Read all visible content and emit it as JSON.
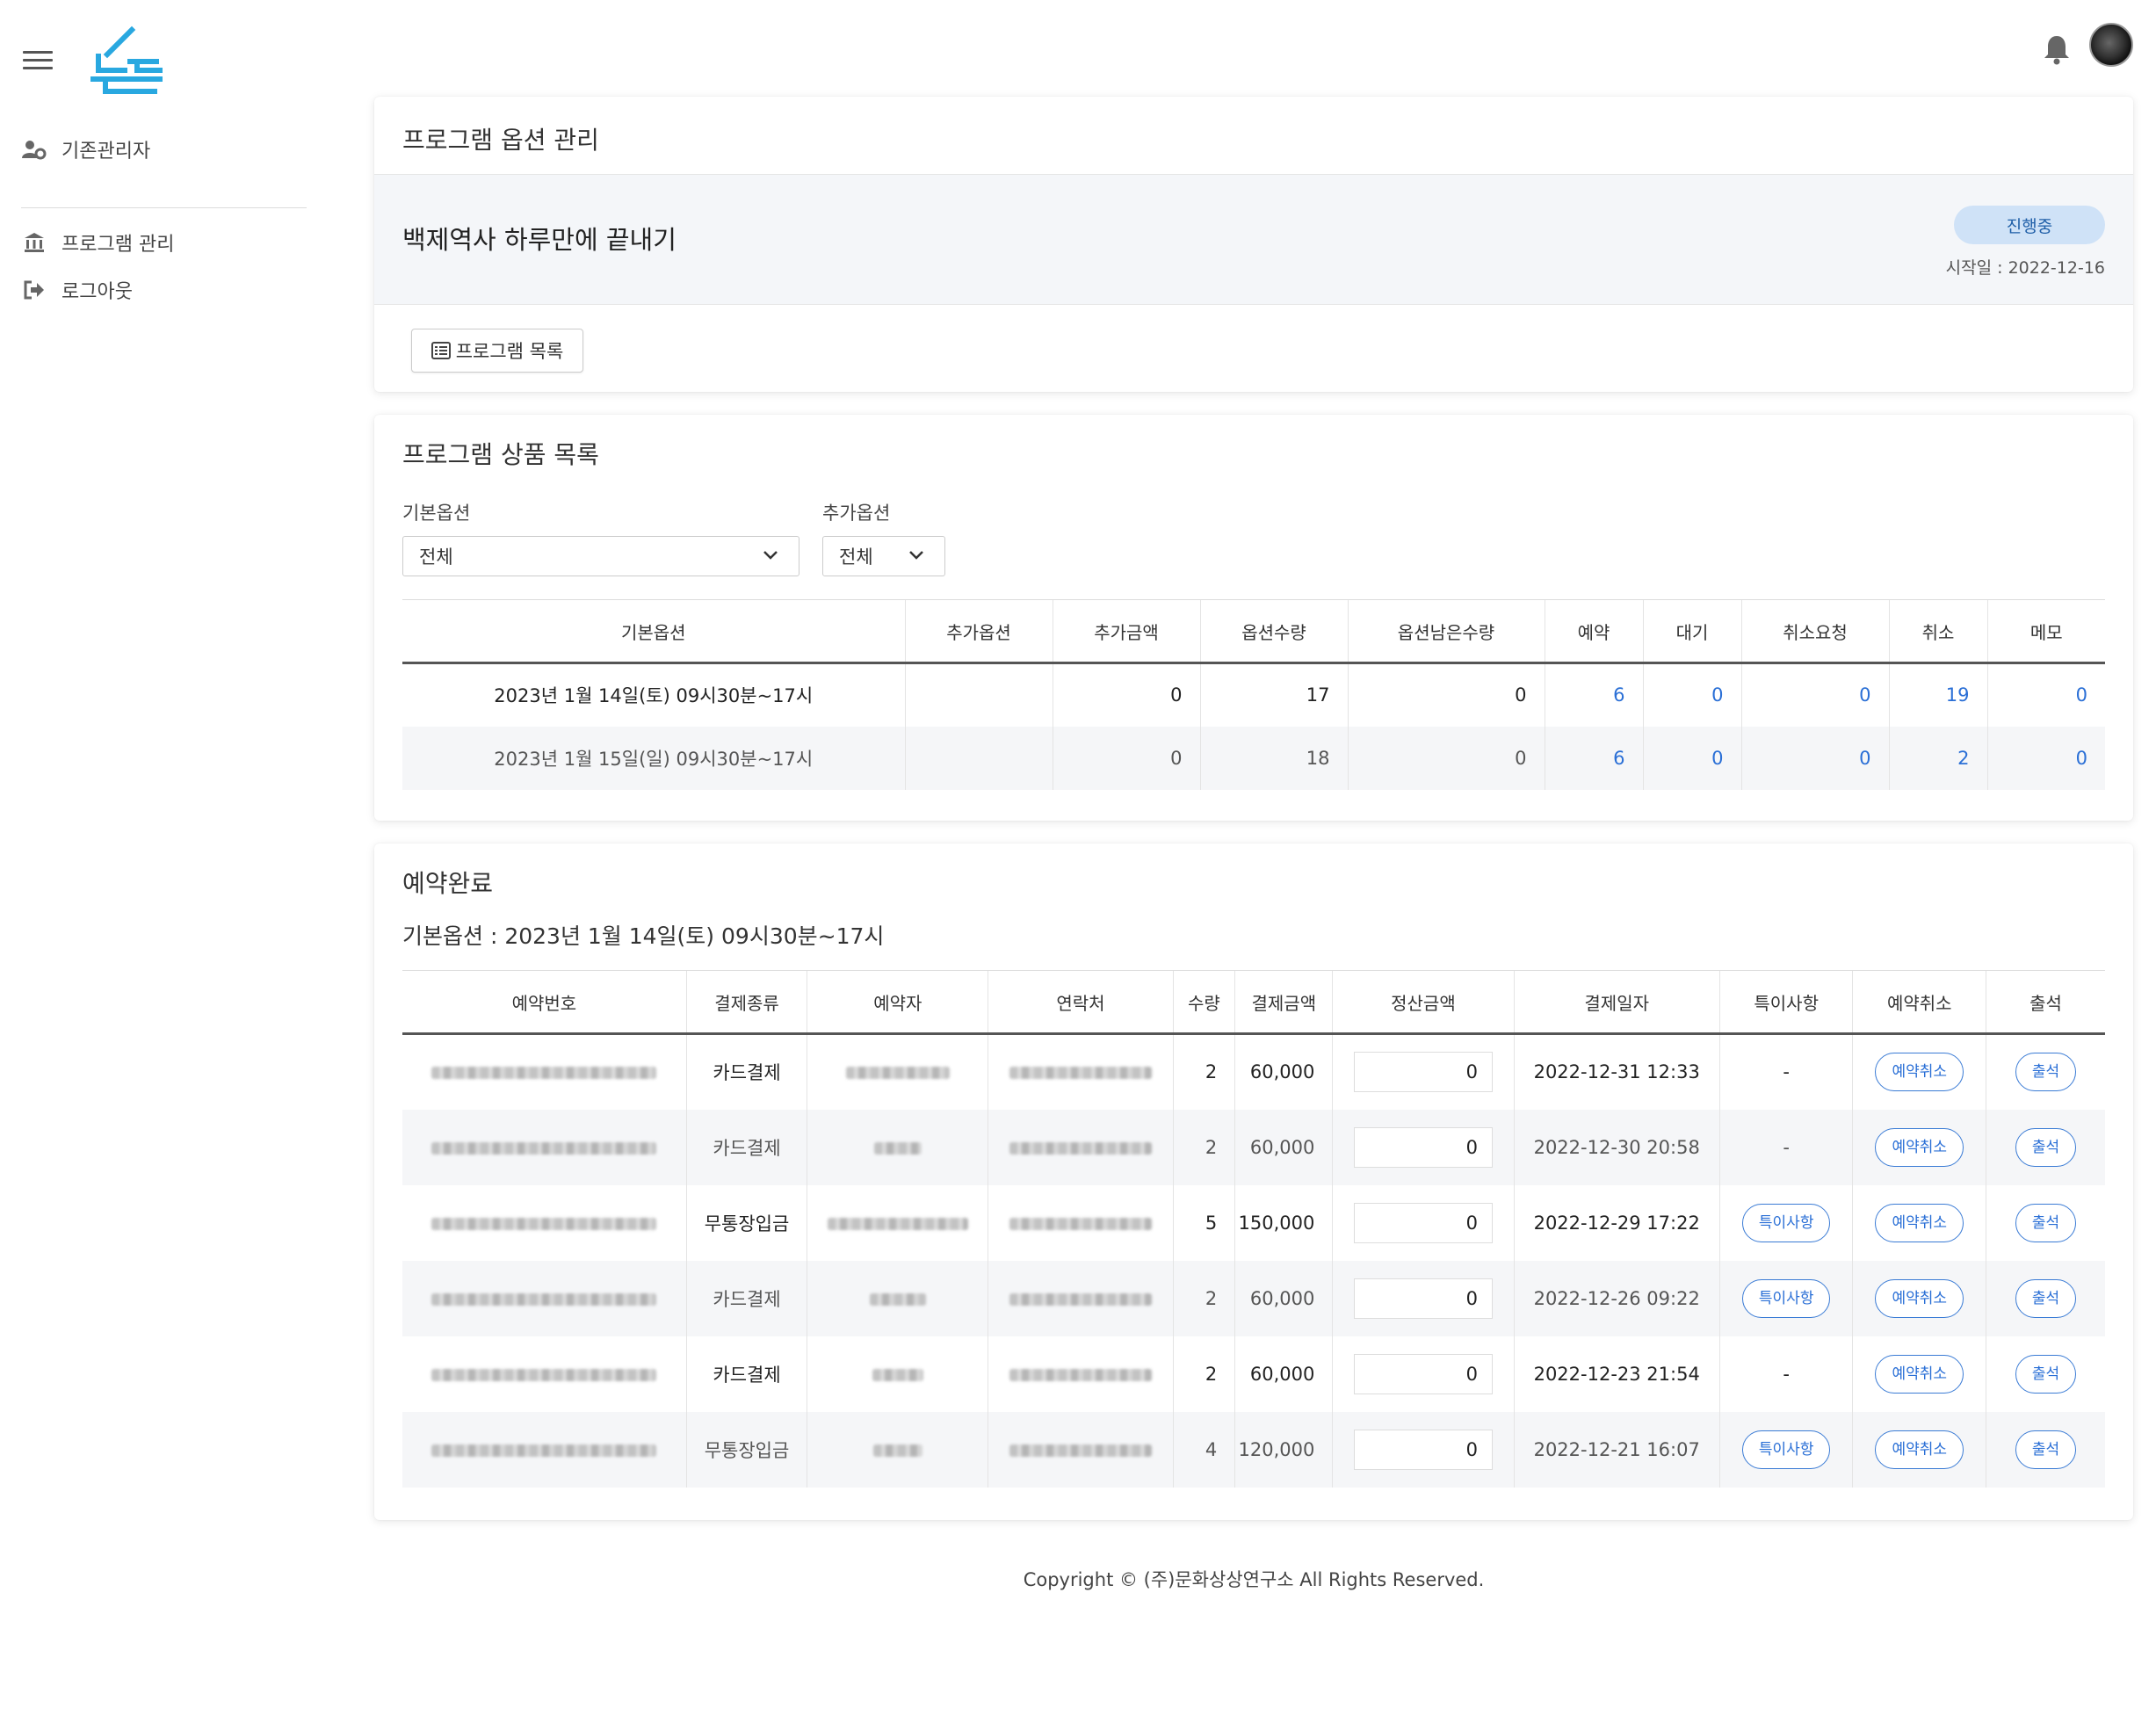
{
  "sidebar": {
    "items": [
      {
        "label": "기존관리자",
        "icon": "user-gear-icon"
      },
      {
        "label": "프로그램 관리",
        "icon": "bank-icon"
      },
      {
        "label": "로그아웃",
        "icon": "logout-icon"
      }
    ]
  },
  "header": {
    "logo_icon": "nolto-logo",
    "notification_icon": "bell-icon",
    "avatar_icon": "avatar"
  },
  "option_mgmt": {
    "title": "프로그램 옵션 관리",
    "program_name": "백제역사 하루만에 끝내기",
    "status": "진행중",
    "start_date": "시작일 : 2022-12-16",
    "list_button": "프로그램 목록"
  },
  "products": {
    "title": "프로그램 상품 목록",
    "basic_option_label": "기본옵션",
    "basic_option_value": "전체",
    "extra_option_label": "추가옵션",
    "extra_option_value": "전체",
    "columns": [
      "기본옵션",
      "추가옵션",
      "추가금액",
      "옵션수량",
      "옵션남은수량",
      "예약",
      "대기",
      "취소요청",
      "취소",
      "메모"
    ],
    "rows": [
      {
        "option": "2023년 1월 14일(토) 09시30분~17시",
        "extra": "",
        "extra_price": "0",
        "qty": "17",
        "remain": "0",
        "reserve": "6",
        "wait": "0",
        "cancel_req": "0",
        "cancel": "19",
        "memo": "0"
      },
      {
        "option": "2023년 1월 15일(일) 09시30분~17시",
        "extra": "",
        "extra_price": "0",
        "qty": "18",
        "remain": "0",
        "reserve": "6",
        "wait": "0",
        "cancel_req": "0",
        "cancel": "2",
        "memo": "0"
      }
    ]
  },
  "reservations": {
    "title": "예약완료",
    "subtitle": "기본옵션 : 2023년 1월 14일(토) 09시30분~17시",
    "columns": [
      "예약번호",
      "결제종류",
      "예약자",
      "연락처",
      "수량",
      "결제금액",
      "정산금액",
      "결제일자",
      "특이사항",
      "예약취소",
      "출석"
    ],
    "rows": [
      {
        "pay_type": "카드결제",
        "qty": "2",
        "amount": "60,000",
        "settle": "0",
        "date": "2022-12-31 12:33",
        "note": "-",
        "cancel": "예약취소",
        "attend": "출석"
      },
      {
        "pay_type": "카드결제",
        "qty": "2",
        "amount": "60,000",
        "settle": "0",
        "date": "2022-12-30 20:58",
        "note": "-",
        "cancel": "예약취소",
        "attend": "출석"
      },
      {
        "pay_type": "무통장입금",
        "qty": "5",
        "amount": "150,000",
        "settle": "0",
        "date": "2022-12-29 17:22",
        "note": "특이사항",
        "cancel": "예약취소",
        "attend": "출석"
      },
      {
        "pay_type": "카드결제",
        "qty": "2",
        "amount": "60,000",
        "settle": "0",
        "date": "2022-12-26 09:22",
        "note": "특이사항",
        "cancel": "예약취소",
        "attend": "출석"
      },
      {
        "pay_type": "카드결제",
        "qty": "2",
        "amount": "60,000",
        "settle": "0",
        "date": "2022-12-23 21:54",
        "note": "-",
        "cancel": "예약취소",
        "attend": "출석"
      },
      {
        "pay_type": "무통장입금",
        "qty": "4",
        "amount": "120,000",
        "settle": "0",
        "date": "2022-12-21 16:07",
        "note": "특이사항",
        "cancel": "예약취소",
        "attend": "출석"
      }
    ]
  },
  "footer": {
    "copyright": "Copyright © (주)문화상상연구소 All Rights Reserved."
  },
  "colors": {
    "accent": "#2a6fd6",
    "badge_bg": "#cfe2f7",
    "logo": "#29a8e0"
  }
}
